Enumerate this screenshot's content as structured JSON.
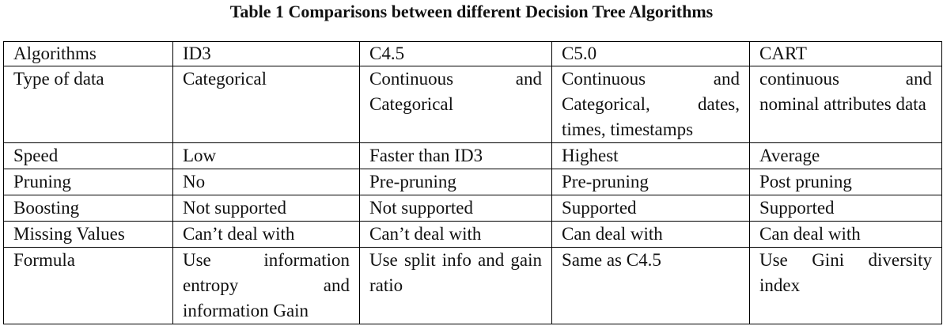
{
  "caption": "Table 1 Comparisons between different Decision Tree Algorithms",
  "table": {
    "headers": [
      "Algorithms",
      "ID3",
      "C4.5",
      "C5.0",
      "CART"
    ],
    "rows": [
      [
        "Type of data",
        "Categorical",
        "Continuous and Categorical",
        "Continuous and Categorical, dates, times, timestamps",
        "continuous and nominal attributes data"
      ],
      [
        "Speed",
        "Low",
        "Faster than ID3",
        "Highest",
        "Average"
      ],
      [
        "Pruning",
        "No",
        "Pre-pruning",
        "Pre-pruning",
        "Post pruning"
      ],
      [
        "Boosting",
        "Not supported",
        "Not supported",
        "Supported",
        "Supported"
      ],
      [
        "Missing Values",
        "Can’t deal with",
        "Can’t deal with",
        "Can deal with",
        "Can deal with"
      ],
      [
        "Formula",
        "Use information entropy and information Gain",
        "Use split info and gain ratio",
        "Same as C4.5",
        "Use Gini diversity index"
      ]
    ]
  }
}
